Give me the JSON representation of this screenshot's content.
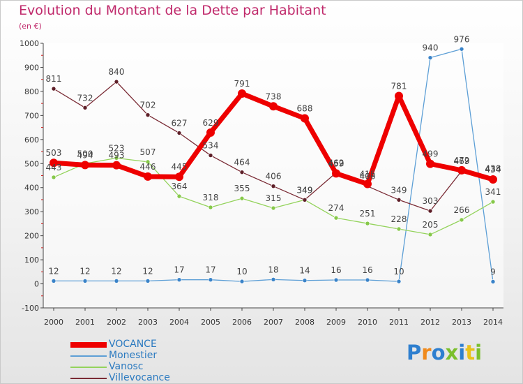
{
  "title": "Evolution du Montant de la Dette par Habitant",
  "unit": "(en €)",
  "logo": {
    "text": "Proxiti",
    "colors": [
      "#2e7fcf",
      "#f08a1c",
      "#2e7fcf",
      "#7bbf2c",
      "#2e7fcf",
      "#e8c21a",
      "#7bbf2c"
    ]
  },
  "chart_data": {
    "type": "line",
    "title": "Evolution du Montant de la Dette par Habitant",
    "ylabel": "(en €)",
    "xlabel": "",
    "x": [
      "2000",
      "2001",
      "2002",
      "2003",
      "2004",
      "2005",
      "2006",
      "2007",
      "2008",
      "2009",
      "2010",
      "2011",
      "2012",
      "2013",
      "2014"
    ],
    "ylim": [
      -100,
      1000
    ],
    "yticks": [
      -100,
      0,
      100,
      200,
      300,
      400,
      500,
      600,
      700,
      800,
      900,
      1000
    ],
    "grid": false,
    "legend": "bottom-left",
    "series": [
      {
        "name": "VOCANCE",
        "color": "#ee0000",
        "values": [
          503,
          494,
          493,
          446,
          445,
          629,
          791,
          738,
          688,
          459,
          415,
          781,
          499,
          472,
          434
        ]
      },
      {
        "name": "Monestier",
        "color": "#5d9fd6",
        "values": [
          12,
          12,
          12,
          12,
          17,
          17,
          10,
          18,
          14,
          16,
          16,
          10,
          940,
          976,
          9
        ]
      },
      {
        "name": "Vanosc",
        "color": "#94d35c",
        "values": [
          443,
          500,
          523,
          507,
          364,
          318,
          355,
          315,
          349,
          274,
          251,
          228,
          205,
          266,
          341
        ]
      },
      {
        "name": "Villevocance",
        "color": "#7a2b35",
        "values": [
          811,
          732,
          840,
          702,
          627,
          534,
          464,
          406,
          349,
          462,
          406,
          349,
          303,
          469,
          438
        ]
      }
    ]
  }
}
